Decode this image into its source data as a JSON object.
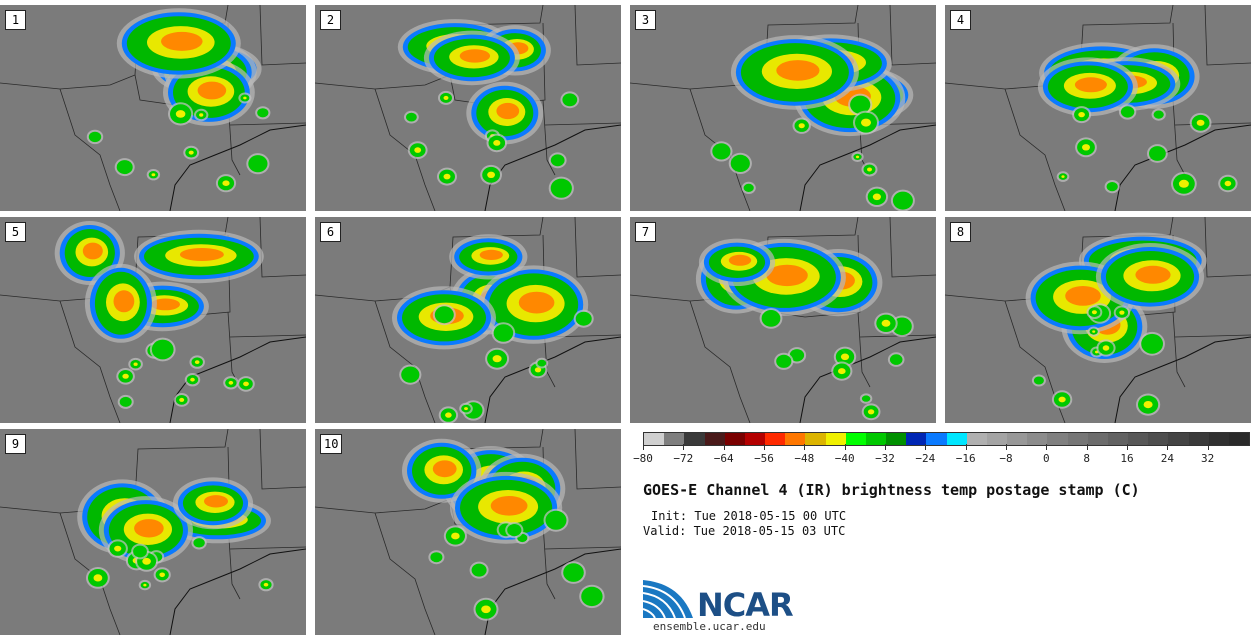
{
  "panels": [
    {
      "label": "1"
    },
    {
      "label": "2"
    },
    {
      "label": "3"
    },
    {
      "label": "4"
    },
    {
      "label": "5"
    },
    {
      "label": "6"
    },
    {
      "label": "7"
    },
    {
      "label": "8"
    },
    {
      "label": "9"
    },
    {
      "label": "10"
    }
  ],
  "colorbar": {
    "colors": [
      "#d0d0d0",
      "#7f7f7f",
      "#3a3a3a",
      "#4a1a1a",
      "#7a0000",
      "#b40000",
      "#ff2a00",
      "#ff7700",
      "#dcb400",
      "#f0f000",
      "#00ff00",
      "#00c800",
      "#009000",
      "#0026b4",
      "#0a7aff",
      "#00e6ff",
      "#b0b0b0",
      "#a4a4a4",
      "#989898",
      "#8c8c8c",
      "#808080",
      "#767676",
      "#6c6c6c",
      "#626262",
      "#585858",
      "#4e4e4e",
      "#444444",
      "#3a3a3a",
      "#303030",
      "#2a2a2a"
    ],
    "ticks": [
      "−80",
      "−72",
      "−64",
      "−56",
      "−48",
      "−40",
      "−32",
      "−24",
      "−16",
      "−8",
      "0",
      "8",
      "16",
      "24",
      "32"
    ]
  },
  "title": "GOES-E Channel 4 (IR) brightness temp postage stamp (C)",
  "init": "Init: Tue 2018-05-15 00 UTC",
  "valid": "Valid: Tue 2018-05-15 03 UTC",
  "logo_text": "NCAR",
  "site": "ensemble.ucar.edu"
}
